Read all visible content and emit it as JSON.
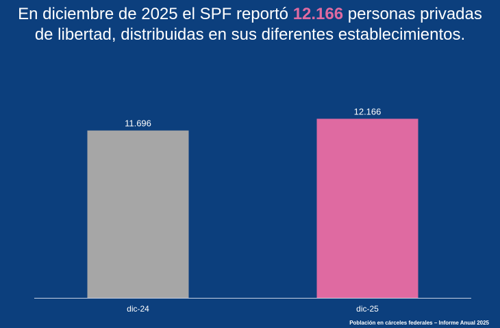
{
  "title": {
    "before": "En diciembre de 2025 el SPF reportó ",
    "highlight": "12.166",
    "after": " personas privadas de libertad, distribuidas en sus diferentes establecimientos."
  },
  "footer": "Población en cárceles federales – Informe Anual 2025",
  "colors": {
    "background": "#0c3f7d",
    "highlight": "#df6aa1",
    "axis": "#c9d3e6"
  },
  "chart_data": {
    "type": "bar",
    "categories": [
      "dic-24",
      "dic-25"
    ],
    "values": [
      11696,
      12166
    ],
    "data_labels": [
      "11.696",
      "12.166"
    ],
    "bar_colors": [
      "#a6a6a6",
      "#df6aa1"
    ],
    "ylim": [
      5000,
      13000
    ],
    "grid": false,
    "legend": "none",
    "xlabel": "",
    "ylabel": ""
  }
}
